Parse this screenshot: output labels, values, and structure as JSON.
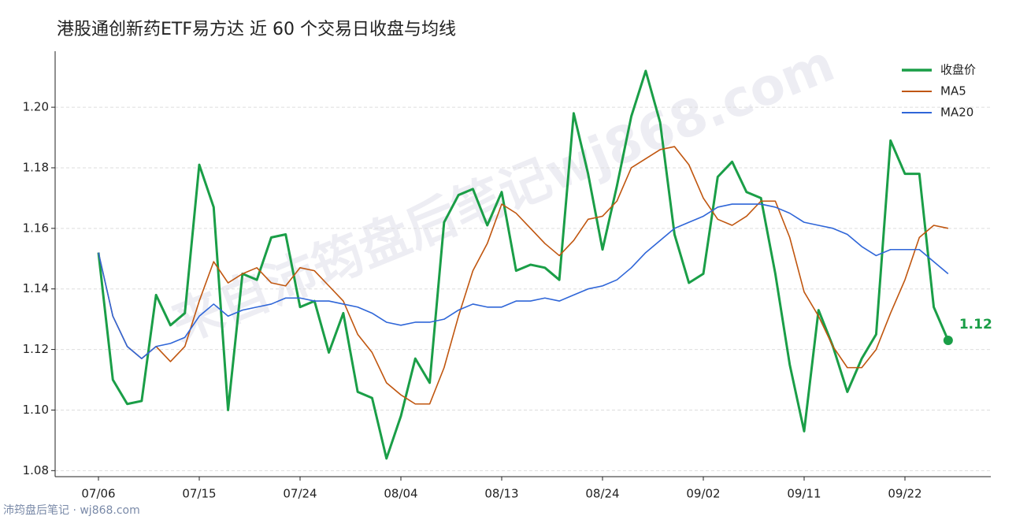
{
  "chart_data": {
    "type": "line",
    "title": "港股通创新药ETF易方达 近 60 个交易日收盘与均线",
    "watermark": "来自沛筠盘后笔记wj868.com",
    "footer": "沛筠盘后笔记 · wj868.com",
    "categories": [
      "07/06",
      null,
      null,
      null,
      null,
      null,
      null,
      "07/15",
      null,
      null,
      null,
      null,
      null,
      null,
      "07/24",
      null,
      null,
      null,
      null,
      null,
      null,
      "08/04",
      null,
      null,
      null,
      null,
      null,
      null,
      "08/13",
      null,
      null,
      null,
      null,
      null,
      null,
      "08/24",
      null,
      null,
      null,
      null,
      null,
      null,
      "09/02",
      null,
      null,
      null,
      null,
      null,
      null,
      "09/11",
      null,
      null,
      null,
      null,
      null,
      null,
      "09/22",
      null,
      null,
      null
    ],
    "series": [
      {
        "name": "收盘价",
        "color": "#1a9e47",
        "values": [
          1.152,
          1.11,
          1.102,
          1.103,
          1.138,
          1.128,
          1.132,
          1.181,
          1.167,
          1.1,
          1.145,
          1.143,
          1.157,
          1.158,
          1.134,
          1.136,
          1.119,
          1.132,
          1.106,
          1.104,
          1.084,
          1.098,
          1.117,
          1.109,
          1.162,
          1.171,
          1.173,
          1.161,
          1.172,
          1.146,
          1.148,
          1.147,
          1.143,
          1.198,
          1.178,
          1.153,
          1.174,
          1.197,
          1.212,
          1.195,
          1.158,
          1.142,
          1.145,
          1.177,
          1.182,
          1.172,
          1.17,
          1.145,
          1.115,
          1.093,
          1.133,
          1.121,
          1.106,
          1.117,
          1.125,
          1.189,
          1.178,
          1.178,
          1.134,
          1.123
        ],
        "value_labels": [
          null,
          null,
          null,
          null,
          null,
          null,
          null,
          null,
          null,
          null,
          null,
          null,
          null,
          null,
          null,
          null,
          null,
          null,
          null,
          null,
          null,
          null,
          null,
          null,
          null,
          null,
          null,
          null,
          null,
          null,
          null,
          null,
          null,
          null,
          null,
          null,
          null,
          null,
          null,
          null,
          null,
          null,
          null,
          null,
          null,
          null,
          null,
          null,
          null,
          null,
          null,
          null,
          null,
          null,
          null,
          null,
          null,
          null,
          null,
          "1.12"
        ]
      },
      {
        "name": "MA5",
        "color": "#c0560f",
        "values": [
          1.152,
          1.131,
          1.121,
          1.117,
          1.121,
          1.116,
          1.121,
          1.136,
          1.149,
          1.142,
          1.145,
          1.147,
          1.142,
          1.141,
          1.147,
          1.146,
          1.141,
          1.136,
          1.125,
          1.119,
          1.109,
          1.105,
          1.102,
          1.102,
          1.114,
          1.131,
          1.146,
          1.155,
          1.168,
          1.165,
          1.16,
          1.155,
          1.151,
          1.156,
          1.163,
          1.164,
          1.169,
          1.18,
          1.183,
          1.186,
          1.187,
          1.181,
          1.17,
          1.163,
          1.161,
          1.164,
          1.169,
          1.169,
          1.157,
          1.139,
          1.131,
          1.121,
          1.114,
          1.114,
          1.12,
          1.132,
          1.143,
          1.157,
          1.161,
          1.16
        ]
      },
      {
        "name": "MA20",
        "color": "#2f66d8",
        "values": [
          1.152,
          1.131,
          1.121,
          1.117,
          1.121,
          1.122,
          1.124,
          1.131,
          1.135,
          1.131,
          1.133,
          1.134,
          1.135,
          1.137,
          1.137,
          1.136,
          1.136,
          1.135,
          1.134,
          1.132,
          1.129,
          1.128,
          1.129,
          1.129,
          1.13,
          1.133,
          1.135,
          1.134,
          1.134,
          1.136,
          1.136,
          1.137,
          1.136,
          1.138,
          1.14,
          1.141,
          1.143,
          1.147,
          1.152,
          1.156,
          1.16,
          1.162,
          1.164,
          1.167,
          1.168,
          1.168,
          1.168,
          1.167,
          1.165,
          1.162,
          1.161,
          1.16,
          1.158,
          1.154,
          1.151,
          1.153,
          1.153,
          1.153,
          1.149,
          1.145
        ]
      }
    ],
    "ylim": [
      1.078,
      1.2185
    ],
    "yticks": [
      1.08,
      {
        "value": 1.1,
        "label": "1.10"
      },
      1.12,
      1.14,
      1.16,
      1.18,
      {
        "value": 1.2,
        "label": "1.20"
      }
    ],
    "grid": true,
    "legend": "upper right"
  }
}
